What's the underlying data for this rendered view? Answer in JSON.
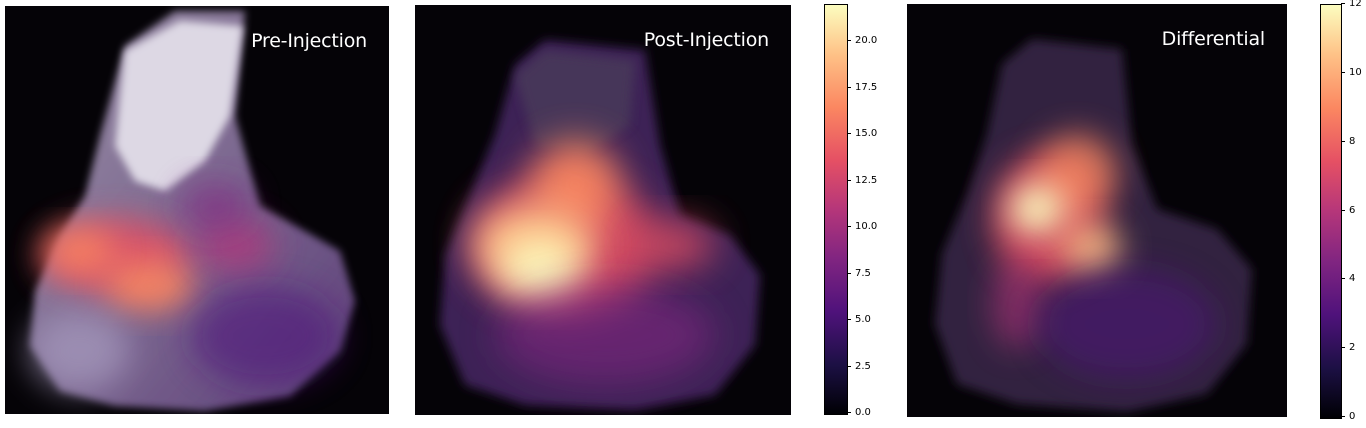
{
  "panels": [
    {
      "title": "Pre-Injection"
    },
    {
      "title": "Post-Injection"
    },
    {
      "title": "Differential"
    }
  ],
  "colorbars": [
    {
      "ticks": [
        "0.0",
        "2.5",
        "5.0",
        "7.5",
        "10.0",
        "12.5",
        "15.0",
        "17.5",
        "20.0"
      ]
    },
    {
      "ticks": [
        "0",
        "2",
        "4",
        "6",
        "8",
        "10",
        "12"
      ]
    }
  ],
  "colormap": [
    "#000004",
    "#1c1044",
    "#4f127b",
    "#812581",
    "#b5367a",
    "#e55064",
    "#fb8761",
    "#fec287",
    "#fcfdbf"
  ]
}
